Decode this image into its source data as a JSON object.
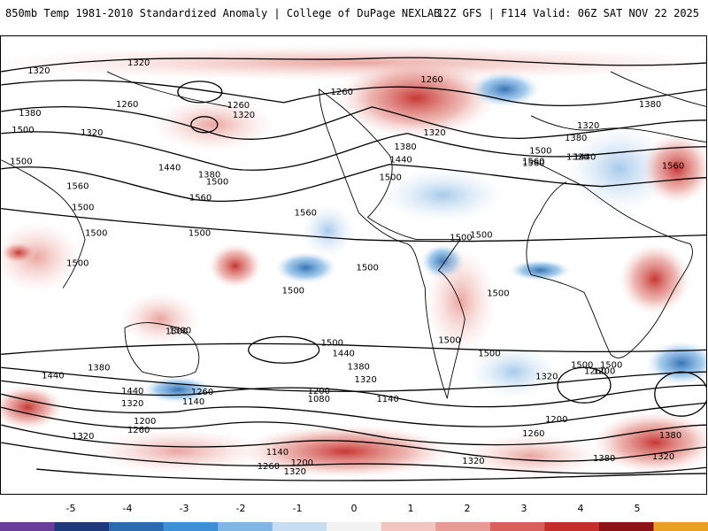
{
  "header": {
    "left_title": "850mb Temp 1981-2010 Standardized Anomaly | College of DuPage NEXLAB",
    "right_title": "12Z GFS | F114 Valid: 06Z SAT NOV 22 2025"
  },
  "map": {
    "contour_labels": [
      "1320",
      "1320",
      "1260",
      "1380",
      "1500",
      "1320",
      "1260",
      "1320",
      "1500",
      "1260",
      "1440",
      "1380",
      "1560",
      "1500",
      "1560",
      "1500",
      "1560",
      "1500",
      "1500",
      "1560",
      "1500",
      "1500",
      "1500",
      "1260",
      "1320",
      "1380",
      "1440",
      "1500",
      "1320",
      "1500",
      "1560",
      "1380",
      "1380",
      "1320",
      "1440",
      "1500",
      "1560",
      "1500",
      "1500",
      "1500",
      "1500",
      "1500",
      "1500",
      "1500",
      "1380",
      "1440",
      "1320",
      "1380",
      "1320",
      "1440",
      "1500",
      "1200",
      "1080",
      "1140",
      "1260",
      "1140",
      "1440",
      "1320",
      "1200",
      "1260",
      "1320",
      "1200",
      "1140",
      "1200",
      "1260",
      "1320",
      "1380",
      "1320",
      "1260",
      "1380",
      "1320",
      "1200",
      "1260",
      "1500"
    ]
  },
  "colorbar": {
    "ticks": [
      "-5",
      "-4",
      "-3",
      "-2",
      "-1",
      "0",
      "1",
      "2",
      "3",
      "4",
      "5"
    ],
    "colors": [
      "#6a3d9a",
      "#1f3a7a",
      "#2b6cb0",
      "#3d8fd6",
      "#7fb6e6",
      "#c6ddf2",
      "#f2f2f2",
      "#f3c4c0",
      "#e89a94",
      "#d9605a",
      "#c42d2a",
      "#8c1216",
      "#e8a020"
    ]
  }
}
